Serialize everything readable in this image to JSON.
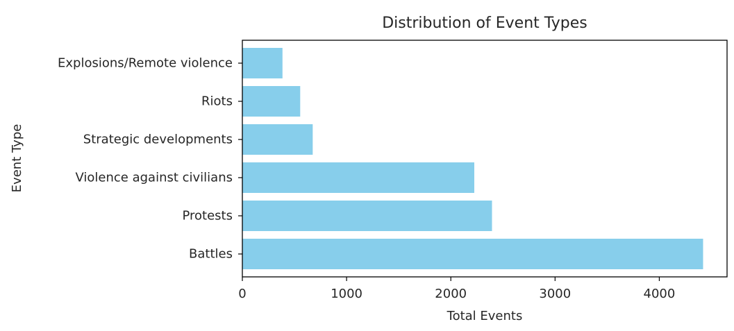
{
  "chart_data": {
    "type": "bar",
    "orientation": "horizontal",
    "title": "Distribution of Event Types",
    "xlabel": "Total Events",
    "ylabel": "Event Type",
    "categories": [
      "Battles",
      "Protests",
      "Violence against civilians",
      "Strategic developments",
      "Riots",
      "Explosions/Remote violence"
    ],
    "values": [
      4420,
      2395,
      2225,
      675,
      555,
      385
    ],
    "xlim": [
      0,
      4650
    ],
    "xticks": [
      0,
      1000,
      2000,
      3000,
      4000
    ],
    "xtick_labels": [
      "0",
      "1000",
      "2000",
      "3000",
      "4000"
    ],
    "grid": false,
    "bar_color": "#87CEEB"
  }
}
